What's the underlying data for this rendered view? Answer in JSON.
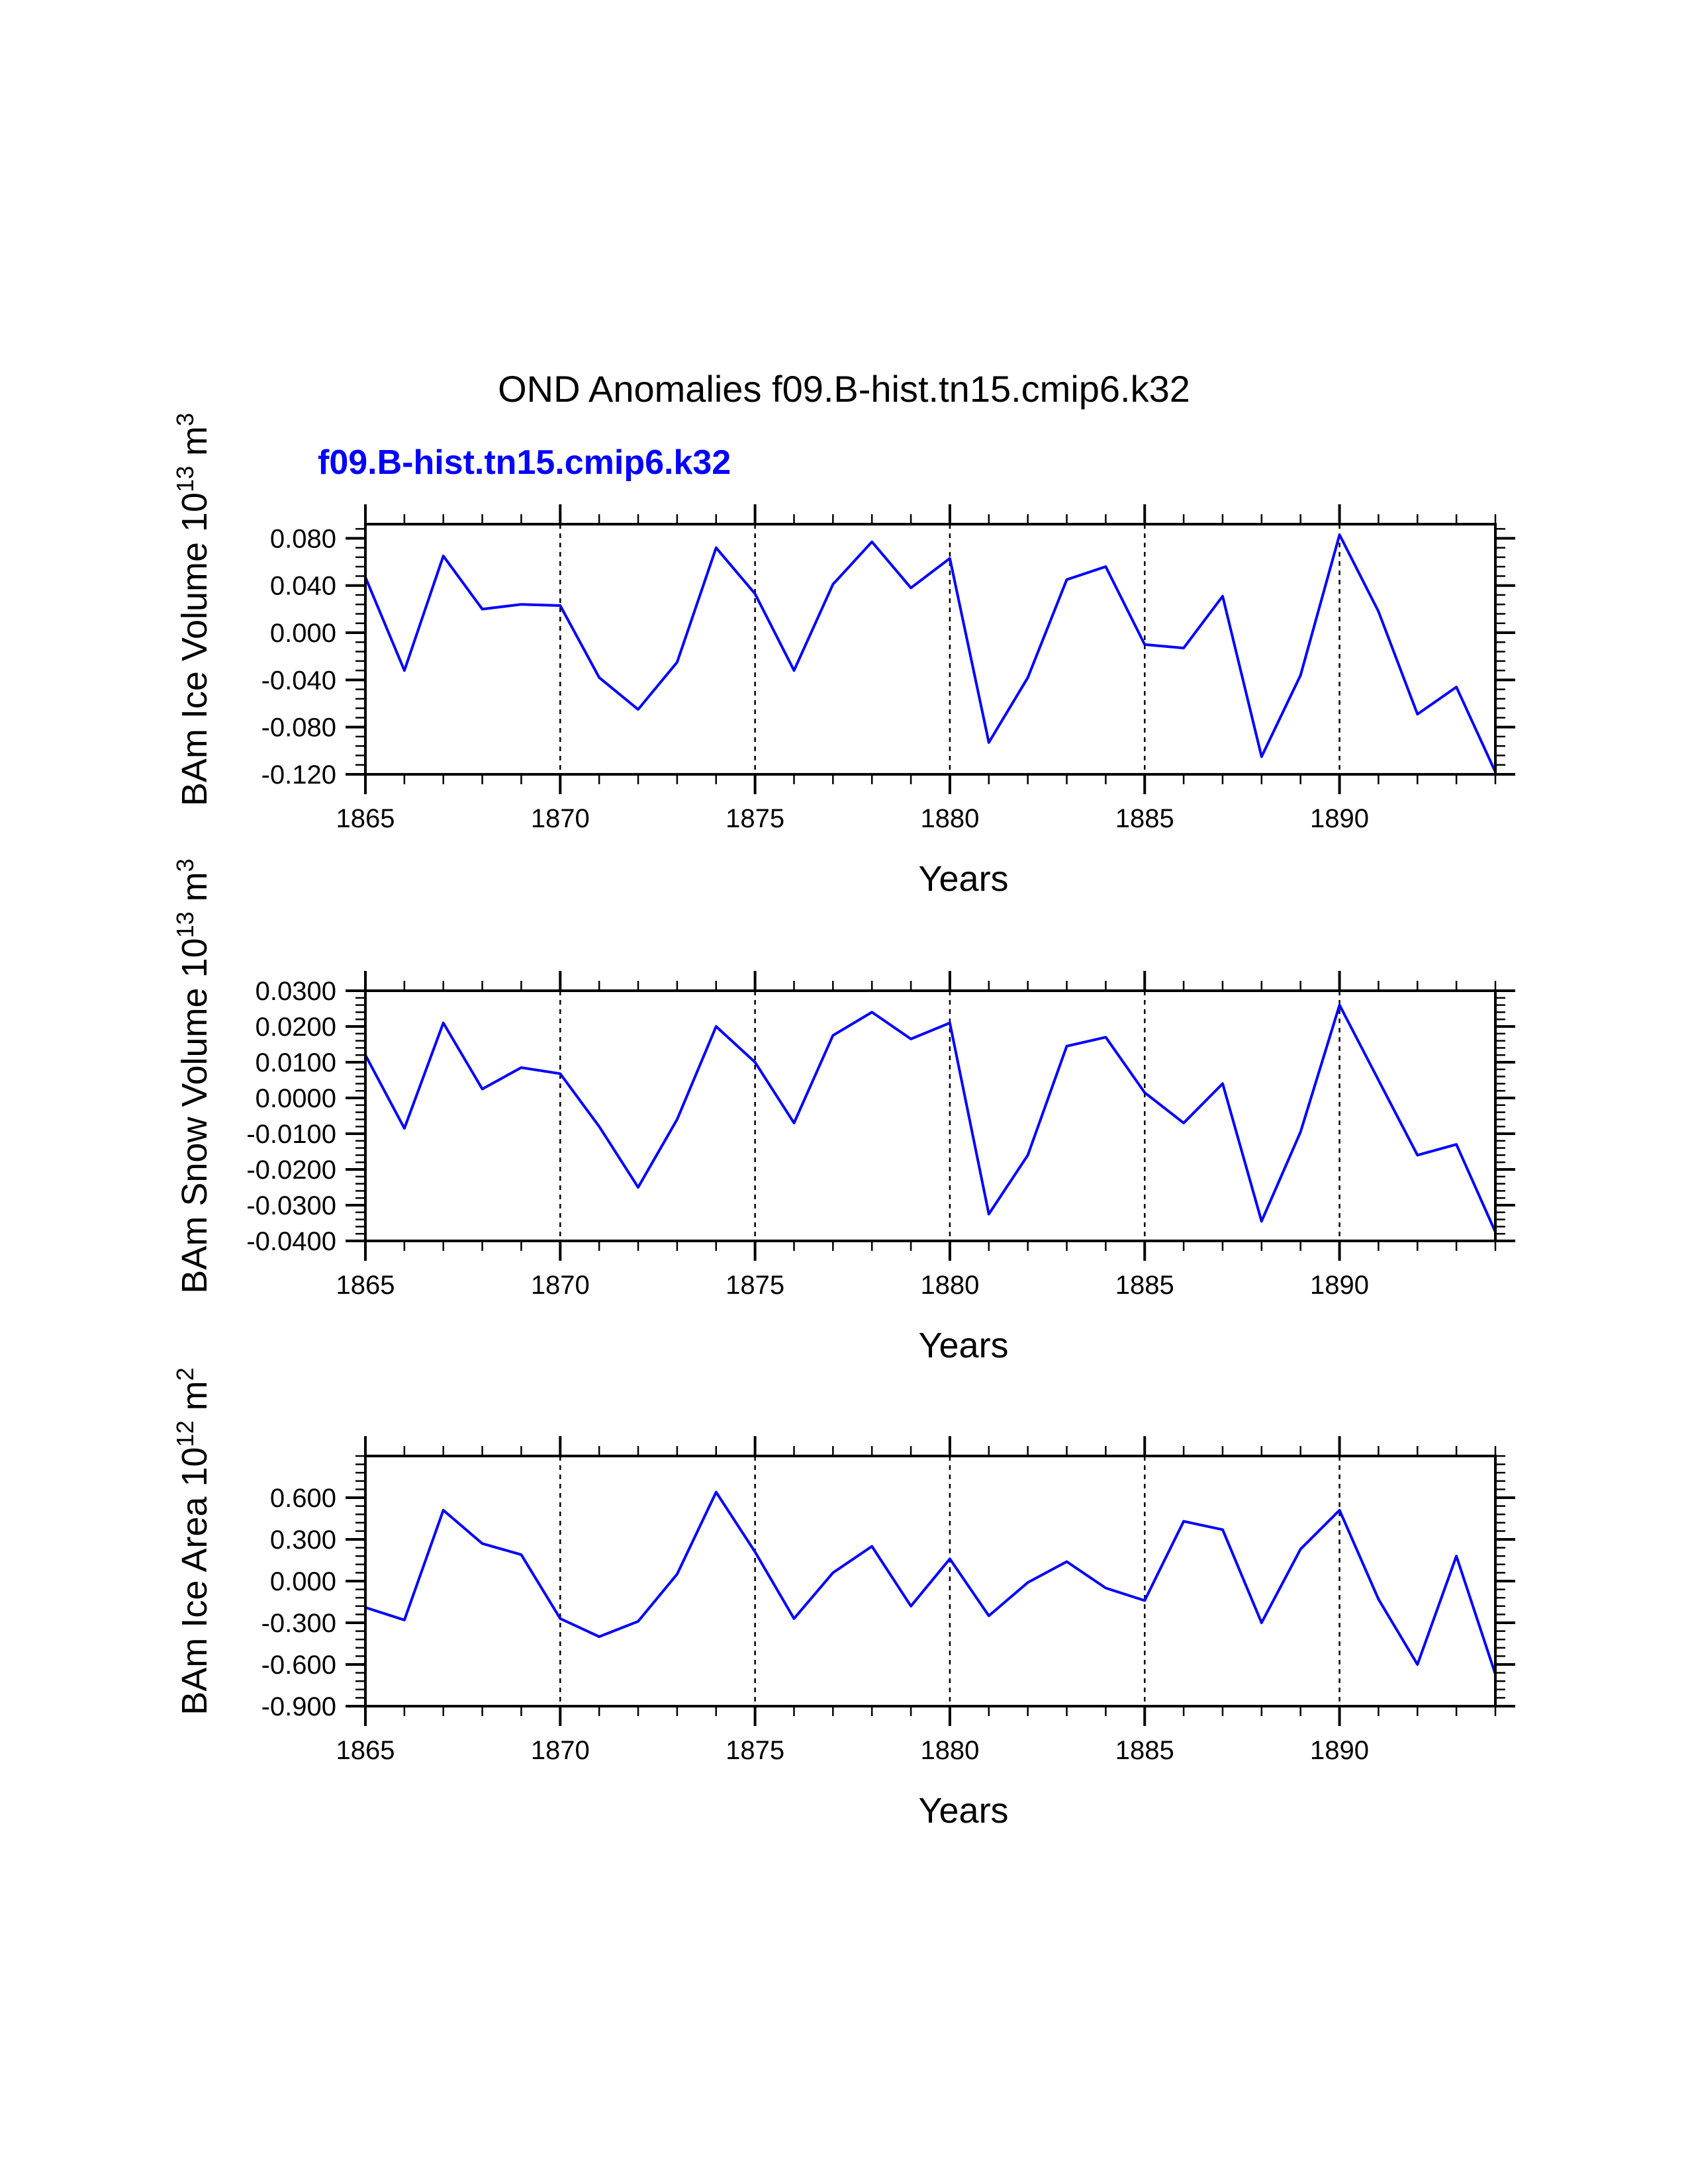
{
  "figure": {
    "title": "OND Anomalies f09.B-hist.tn15.cmip6.k32",
    "case_label": "f09.B-hist.tn15.cmip6.k32",
    "case_color": "#0000ff"
  },
  "chart_data": [
    {
      "type": "line",
      "title": "",
      "xlabel": "Years",
      "ylabel": {
        "base": "BAm Ice Volume 10",
        "exp": "13",
        "unit": " m",
        "unit_exp": "3"
      },
      "xlim": [
        1865,
        1894
      ],
      "ylim": [
        -0.12,
        0.092
      ],
      "xticks": [
        1865,
        1870,
        1875,
        1880,
        1885,
        1890
      ],
      "xtick_labels": [
        "1865",
        "1870",
        "1875",
        "1880",
        "1885",
        "1890"
      ],
      "yticks": [
        -0.12,
        -0.08,
        -0.04,
        0.0,
        0.04,
        0.08
      ],
      "ytick_labels": [
        "-0.120",
        "-0.080",
        "-0.040",
        "0.000",
        "0.040",
        "0.080"
      ],
      "ref_years": [
        1870,
        1875,
        1880,
        1885,
        1890
      ],
      "series": [
        {
          "name": "f09.B-hist.tn15.cmip6.k32",
          "color": "#0000ff",
          "x": [
            1865,
            1866,
            1867,
            1868,
            1869,
            1870,
            1871,
            1872,
            1873,
            1874,
            1875,
            1876,
            1877,
            1878,
            1879,
            1880,
            1881,
            1882,
            1883,
            1884,
            1885,
            1886,
            1887,
            1888,
            1889,
            1890,
            1891,
            1892,
            1893,
            1894
          ],
          "values": [
            0.047,
            -0.032,
            0.065,
            0.02,
            0.024,
            0.023,
            -0.038,
            -0.065,
            -0.025,
            0.072,
            0.033,
            -0.032,
            0.041,
            0.077,
            0.038,
            0.063,
            -0.093,
            -0.038,
            0.045,
            0.056,
            -0.01,
            -0.013,
            0.031,
            -0.105,
            -0.036,
            0.083,
            0.018,
            -0.069,
            -0.046,
            -0.118
          ]
        }
      ]
    },
    {
      "type": "line",
      "title": "",
      "xlabel": "Years",
      "ylabel": {
        "base": "BAm Snow Volume 10",
        "exp": "13",
        "unit": " m",
        "unit_exp": "3"
      },
      "xlim": [
        1865,
        1894
      ],
      "ylim": [
        -0.04,
        0.03
      ],
      "xticks": [
        1865,
        1870,
        1875,
        1880,
        1885,
        1890
      ],
      "xtick_labels": [
        "1865",
        "1870",
        "1875",
        "1880",
        "1885",
        "1890"
      ],
      "yticks": [
        -0.04,
        -0.03,
        -0.02,
        -0.01,
        0.0,
        0.01,
        0.02,
        0.03
      ],
      "ytick_labels": [
        "-0.0400",
        "-0.0300",
        "-0.0200",
        "-0.0100",
        "0.0000",
        "0.0100",
        "0.0200",
        "0.0300"
      ],
      "ref_years": [
        1870,
        1875,
        1880,
        1885,
        1890
      ],
      "series": [
        {
          "name": "f09.B-hist.tn15.cmip6.k32",
          "color": "#0000ff",
          "x": [
            1865,
            1866,
            1867,
            1868,
            1869,
            1870,
            1871,
            1872,
            1873,
            1874,
            1875,
            1876,
            1877,
            1878,
            1879,
            1880,
            1881,
            1882,
            1883,
            1884,
            1885,
            1886,
            1887,
            1888,
            1889,
            1890,
            1891,
            1892,
            1893,
            1894
          ],
          "values": [
            0.012,
            -0.0085,
            0.021,
            0.0025,
            0.0085,
            0.0068,
            -0.008,
            -0.025,
            -0.006,
            0.02,
            0.01,
            -0.007,
            0.0175,
            0.024,
            0.0165,
            0.021,
            -0.0325,
            -0.016,
            0.0145,
            0.017,
            0.0015,
            -0.007,
            0.004,
            -0.0345,
            -0.0095,
            0.026,
            0.005,
            -0.016,
            -0.013,
            -0.0375
          ]
        }
      ]
    },
    {
      "type": "line",
      "title": "",
      "xlabel": "Years",
      "ylabel": {
        "base": "BAm Ice Area 10",
        "exp": "12",
        "unit": " m",
        "unit_exp": "2"
      },
      "xlim": [
        1865,
        1894
      ],
      "ylim": [
        -0.9,
        0.9
      ],
      "xticks": [
        1865,
        1870,
        1875,
        1880,
        1885,
        1890
      ],
      "xtick_labels": [
        "1865",
        "1870",
        "1875",
        "1880",
        "1885",
        "1890"
      ],
      "yticks": [
        -0.9,
        -0.6,
        -0.3,
        0.0,
        0.3,
        0.6
      ],
      "ytick_labels": [
        "-0.900",
        "-0.600",
        "-0.300",
        "0.000",
        "0.300",
        "0.600"
      ],
      "ref_years": [
        1870,
        1875,
        1880,
        1885,
        1890
      ],
      "series": [
        {
          "name": "f09.B-hist.tn15.cmip6.k32",
          "color": "#0000ff",
          "x": [
            1865,
            1866,
            1867,
            1868,
            1869,
            1870,
            1871,
            1872,
            1873,
            1874,
            1875,
            1876,
            1877,
            1878,
            1879,
            1880,
            1881,
            1882,
            1883,
            1884,
            1885,
            1886,
            1887,
            1888,
            1889,
            1890,
            1891,
            1892,
            1893,
            1894
          ],
          "values": [
            -0.19,
            -0.28,
            0.51,
            0.27,
            0.19,
            -0.27,
            -0.4,
            -0.29,
            0.05,
            0.64,
            0.21,
            -0.27,
            0.06,
            0.25,
            -0.18,
            0.16,
            -0.25,
            -0.01,
            0.14,
            -0.05,
            -0.14,
            0.43,
            0.37,
            -0.3,
            0.23,
            0.51,
            -0.13,
            -0.6,
            0.18,
            -0.67
          ]
        }
      ]
    }
  ]
}
